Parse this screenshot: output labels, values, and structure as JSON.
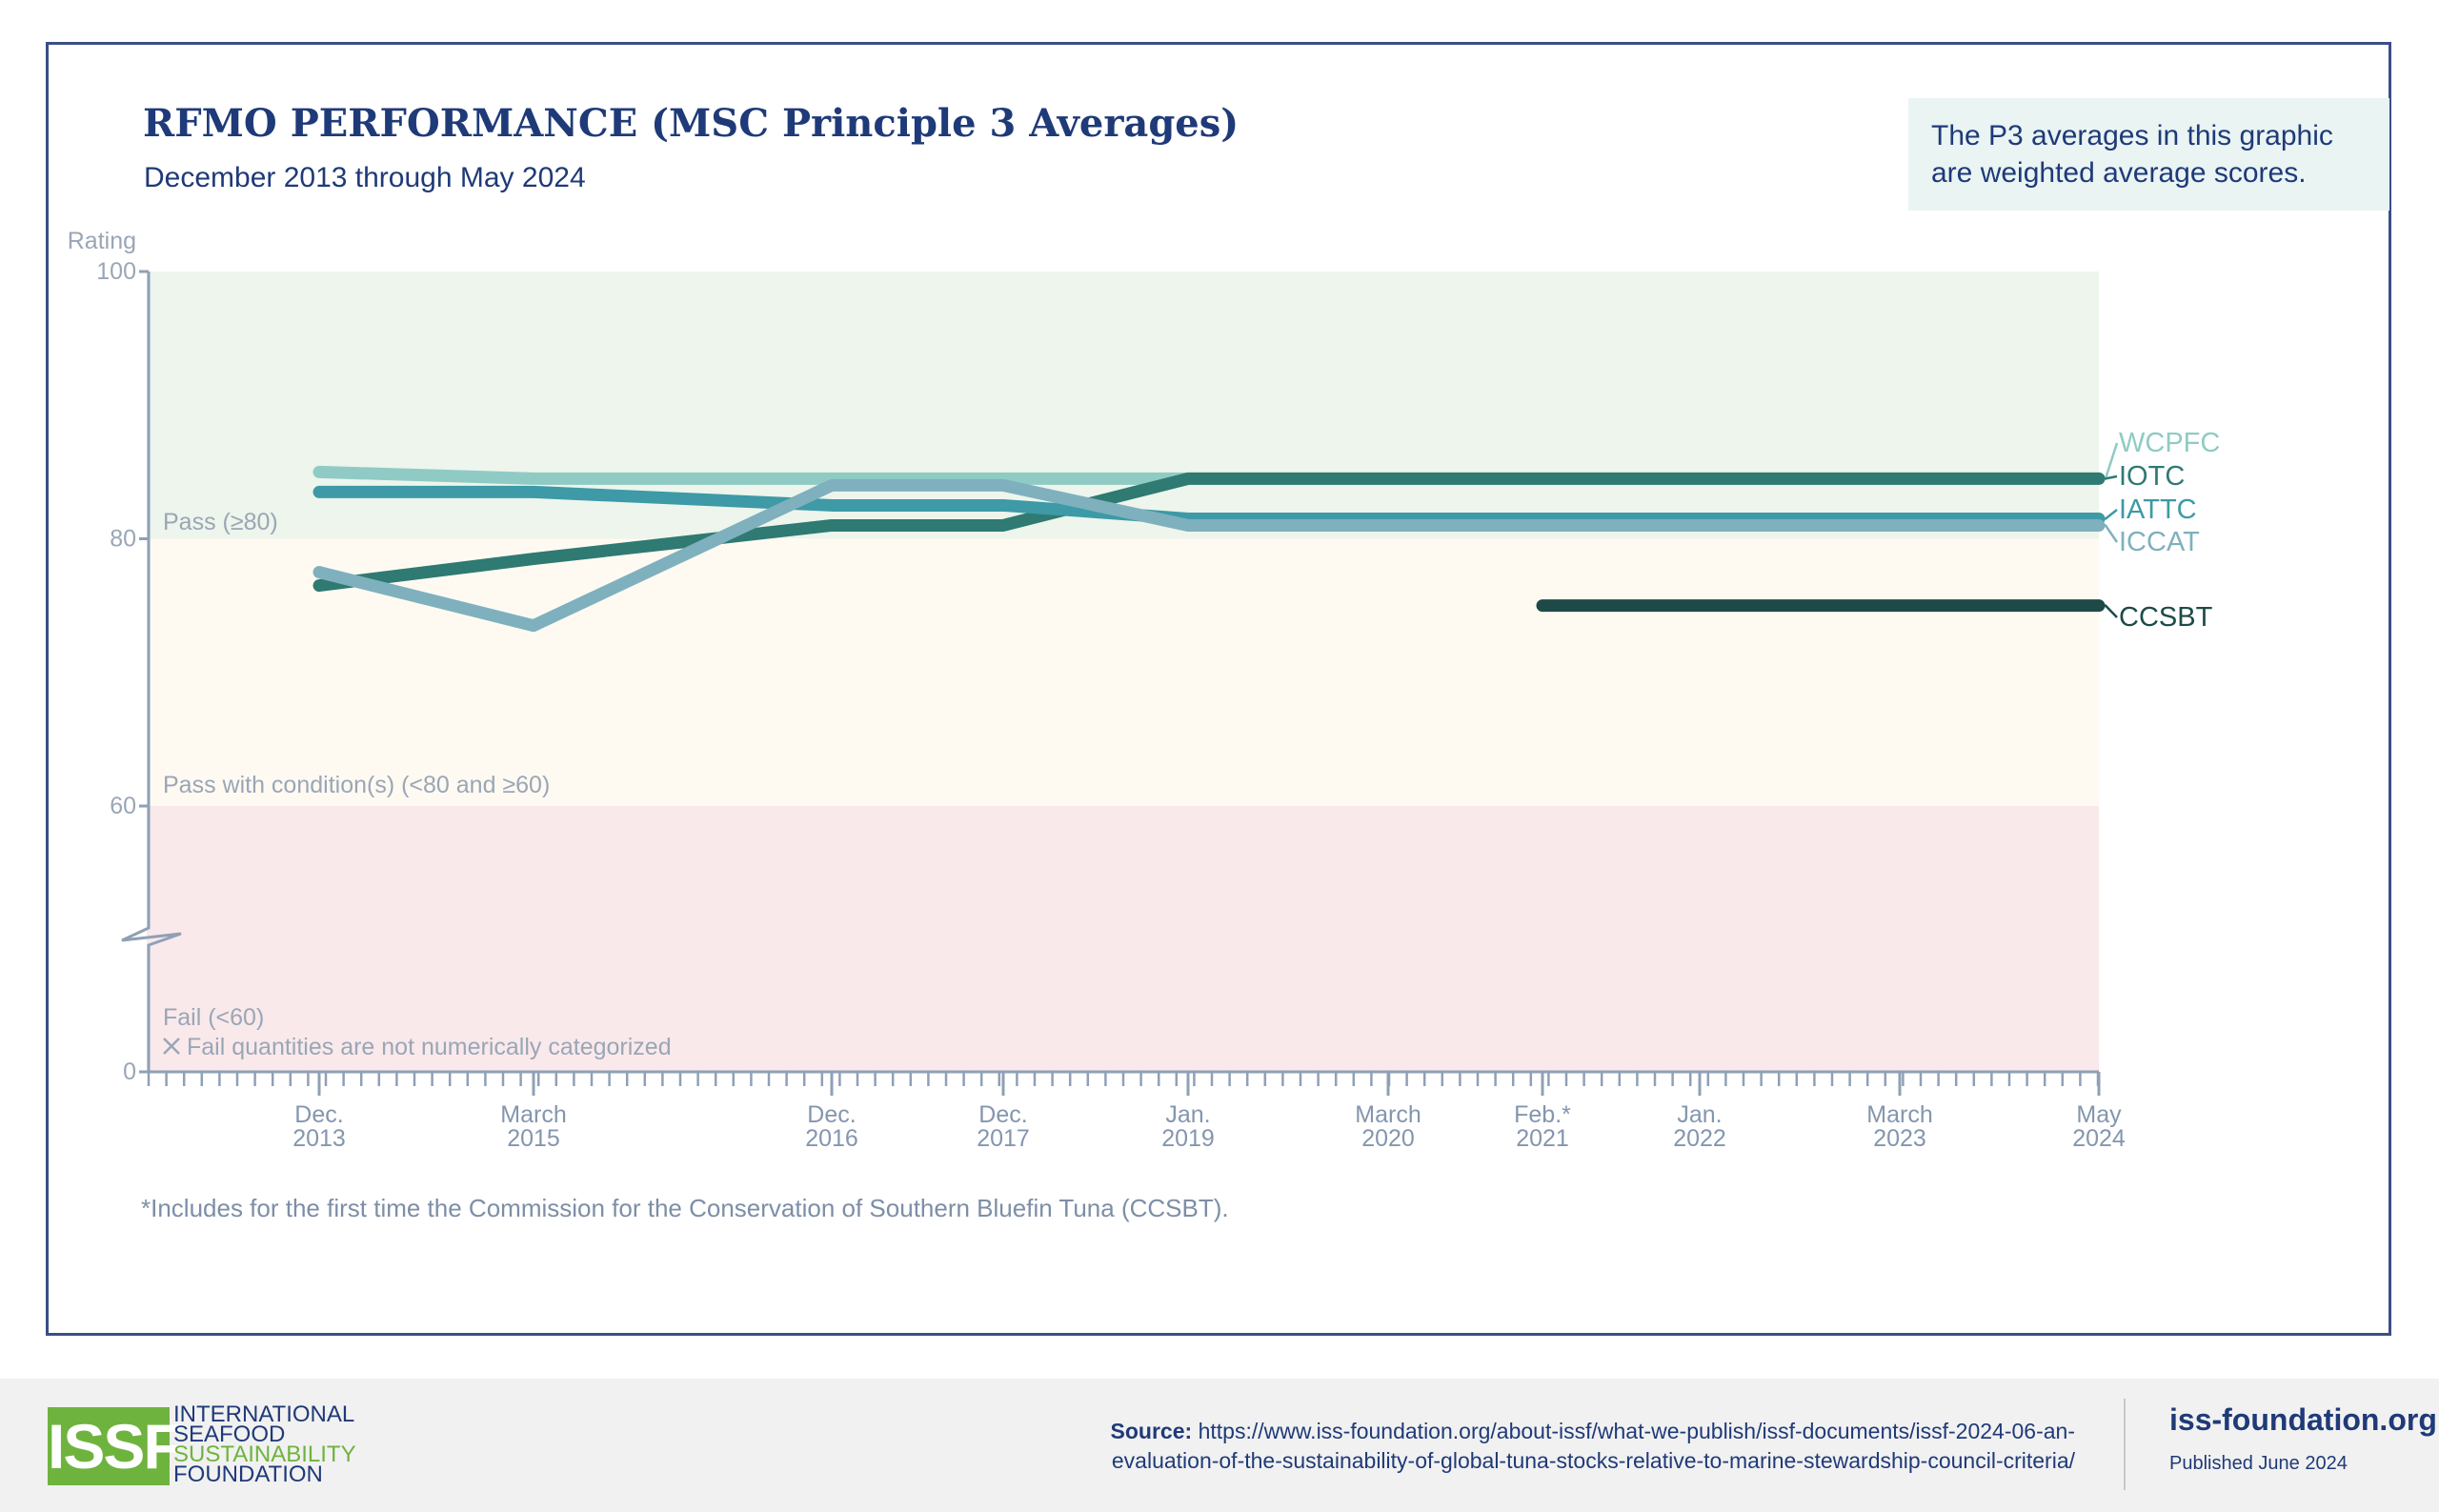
{
  "chart_data": {
    "type": "line",
    "title": "RFMO PERFORMANCE (MSC Principle 3 Averages)",
    "subtitle": "December 2013 through May 2024",
    "ylabel": "Rating",
    "ylim": [
      0,
      100
    ],
    "y_ticks": [
      "0",
      "60",
      "80",
      "100"
    ],
    "y_axis_break": "between 0 and 60",
    "x_ticks": [
      {
        "label1": "Dec.",
        "label2": "2013"
      },
      {
        "label1": "March",
        "label2": "2015"
      },
      {
        "label1": "Dec.",
        "label2": "2016"
      },
      {
        "label1": "Dec.",
        "label2": "2017"
      },
      {
        "label1": "Jan.",
        "label2": "2019"
      },
      {
        "label1": "March",
        "label2": "2020"
      },
      {
        "label1": "Feb.*",
        "label2": "2021"
      },
      {
        "label1": "Jan.",
        "label2": "2022"
      },
      {
        "label1": "March",
        "label2": "2023"
      },
      {
        "label1": "May",
        "label2": "2024"
      }
    ],
    "series": [
      {
        "name": "WCPFC",
        "color": "#8fcbc4",
        "values": [
          85,
          84.5,
          84.5,
          84.5,
          84.5,
          84.5,
          84.5,
          84.5,
          84.5,
          84.5
        ]
      },
      {
        "name": "IOTC",
        "color": "#2f7a72",
        "values": [
          76.5,
          78.5,
          81,
          81,
          84.5,
          84.5,
          84.5,
          84.5,
          84.5,
          84.5
        ]
      },
      {
        "name": "IATTC",
        "color": "#3d9aa6",
        "values": [
          83.5,
          83.5,
          82.5,
          82.5,
          81.5,
          81.5,
          81.5,
          81.5,
          81.5,
          81.5
        ]
      },
      {
        "name": "ICCAT",
        "color": "#7fb0be",
        "values": [
          77.5,
          73.5,
          84,
          84,
          81,
          81,
          81,
          81,
          81,
          81
        ]
      },
      {
        "name": "CCSBT",
        "color": "#1d4a47",
        "values": [
          null,
          null,
          null,
          null,
          null,
          null,
          75,
          75,
          75,
          75
        ]
      }
    ],
    "bands": [
      {
        "label": "Pass (≥80)",
        "from": 80,
        "to": 100,
        "color": "#edf5ec"
      },
      {
        "label": "Pass with condition(s) (<80 and ≥60)",
        "from": 60,
        "to": 80,
        "color": "#fefaf2"
      },
      {
        "label": "Fail (<60)",
        "from": 0,
        "to": 60,
        "color": "#f9e9eb"
      }
    ],
    "fail_note": "Fail quantities are not numerically categorized",
    "legend": "end-of-line labels, right"
  },
  "note_box": "The P3 averages in this graphic are weighted average scores.",
  "footnote": "*Includes for the first time the Commission for the Conservation of Southern Bluefin Tuna (CCSBT).",
  "footer": {
    "logo_abbr": "ISSF",
    "logo_lines": [
      "INTERNATIONAL",
      "SEAFOOD",
      "SUSTAINABILITY",
      "FOUNDATION"
    ],
    "source_label": "Source:",
    "source_line1": "https://www.iss-foundation.org/about-issf/what-we-publish/issf-documents/issf-2024-06-an-",
    "source_line2": "evaluation-of-the-sustainability-of-global-tuna-stocks-relative-to-marine-stewardship-council-criteria/",
    "site": "iss-foundation.org",
    "published": "Published June 2024"
  }
}
